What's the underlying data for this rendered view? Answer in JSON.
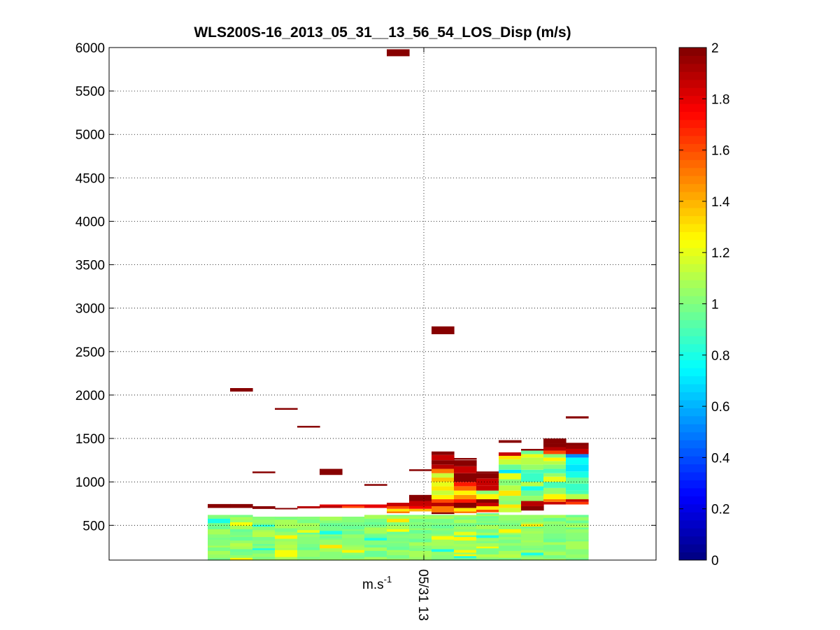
{
  "chart_data": [
    {
      "type": "heatmap",
      "title": "WLS200S-16_2013_05_31__13_56_54_LOS_Disp (m/s)",
      "xlabel": "m.s",
      "xlabel_superscript": "-1",
      "x_ticks": [
        "05/31 13"
      ],
      "y_ticks": [
        500,
        1000,
        1500,
        2000,
        2500,
        3000,
        3500,
        4000,
        4500,
        5000,
        5500,
        6000
      ],
      "ylim": [
        100,
        6000
      ],
      "grid": true,
      "colormap": "jet",
      "colorbar": {
        "ticks": [
          0,
          0.2,
          0.4,
          0.6,
          0.8,
          1,
          1.2,
          1.4,
          1.6,
          1.8,
          2
        ],
        "range": [
          0,
          2
        ],
        "levels": 64
      },
      "colors": {
        "background": "#ffffff",
        "grid": "#000000",
        "saturated_high": "#800000",
        "saturated_low": "#00008f"
      },
      "columns": [
        {
          "low_band_top": 620,
          "cells": [
            [
              700,
              720,
              2
            ],
            [
              720,
              745,
              2
            ]
          ]
        },
        {
          "low_band_top": 620,
          "cells": [
            [
              700,
              720,
              2
            ],
            [
              720,
              745,
              2
            ],
            [
              2040,
              2080,
              2
            ]
          ]
        },
        {
          "low_band_top": 600,
          "cells": [
            [
              690,
              705,
              2
            ],
            [
              705,
              720,
              2
            ],
            [
              1100,
              1120,
              2
            ]
          ]
        },
        {
          "low_band_top": 600,
          "cells": [
            [
              690,
              700,
              2
            ],
            [
              1830,
              1850,
              2
            ]
          ]
        },
        {
          "low_band_top": 600,
          "cells": [
            [
              695,
              720,
              1.9
            ],
            [
              1625,
              1645,
              2
            ]
          ]
        },
        {
          "low_band_top": 600,
          "cells": [
            [
              700,
              725,
              1.9
            ],
            [
              725,
              740,
              1.8
            ],
            [
              1080,
              1150,
              2
            ]
          ]
        },
        {
          "low_band_top": 600,
          "cells": [
            [
              700,
              725,
              1.6
            ],
            [
              725,
              740,
              1.8
            ]
          ]
        },
        {
          "low_band_top": 620,
          "cells": [
            [
              700,
              740,
              1.8
            ],
            [
              955,
              975,
              2
            ]
          ]
        },
        {
          "low_band_top": 620,
          "cells": [
            [
              640,
              660,
              1.5
            ],
            [
              660,
              690,
              1.3
            ],
            [
              690,
              720,
              1.6
            ],
            [
              720,
              760,
              1.85
            ],
            [
              5900,
              5980,
              2
            ]
          ]
        },
        {
          "low_band_top": 620,
          "cells": [
            [
              660,
              690,
              1.4
            ],
            [
              690,
              720,
              1.75
            ],
            [
              720,
              780,
              1.85
            ],
            [
              780,
              850,
              2
            ],
            [
              1125,
              1145,
              2
            ]
          ]
        },
        {
          "low_band_top": 620,
          "cells": [
            [
              630,
              650,
              2
            ],
            [
              650,
              720,
              1.5
            ],
            [
              720,
              760,
              1.9
            ],
            [
              760,
              800,
              1.6
            ],
            [
              800,
              850,
              1.25
            ],
            [
              850,
              900,
              1.15
            ],
            [
              900,
              950,
              1.3
            ],
            [
              950,
              1000,
              1.2
            ],
            [
              1000,
              1050,
              1.35
            ],
            [
              1050,
              1100,
              1.15
            ],
            [
              1100,
              1150,
              1.5
            ],
            [
              1150,
              1200,
              1.9
            ],
            [
              1200,
              1250,
              2
            ],
            [
              1250,
              1310,
              1.85
            ],
            [
              1310,
              1350,
              2
            ],
            [
              2700,
              2790,
              2
            ]
          ]
        },
        {
          "low_band_top": 620,
          "cells": [
            [
              640,
              660,
              1.5
            ],
            [
              660,
              700,
              1.3
            ],
            [
              700,
              760,
              2
            ],
            [
              760,
              800,
              1.7
            ],
            [
              800,
              850,
              1.45
            ],
            [
              850,
              900,
              1.25
            ],
            [
              900,
              950,
              1.55
            ],
            [
              950,
              1000,
              1.7
            ],
            [
              1000,
              1100,
              2
            ],
            [
              1100,
              1180,
              1.85
            ],
            [
              1180,
              1250,
              2
            ],
            [
              1255,
              1275,
              2
            ]
          ]
        },
        {
          "low_band_top": 640,
          "cells": [
            [
              650,
              680,
              1.6
            ],
            [
              680,
              720,
              1.3
            ],
            [
              720,
              760,
              1.85
            ],
            [
              760,
              800,
              2
            ],
            [
              800,
              860,
              1.25
            ],
            [
              860,
              900,
              1.0
            ],
            [
              900,
              960,
              1.85
            ],
            [
              960,
              1040,
              1.85
            ],
            [
              1040,
              1100,
              2
            ],
            [
              1100,
              1120,
              2
            ]
          ]
        },
        {
          "low_band_top": 620,
          "cells": [
            [
              650,
              700,
              1.15
            ],
            [
              700,
              740,
              1.3
            ],
            [
              740,
              780,
              1.0
            ],
            [
              780,
              840,
              1.05
            ],
            [
              840,
              900,
              1.3
            ],
            [
              900,
              960,
              1.1
            ],
            [
              960,
              1030,
              1.0
            ],
            [
              1030,
              1100,
              1.2
            ],
            [
              1100,
              1140,
              0.7
            ],
            [
              1140,
              1200,
              0.95
            ],
            [
              1200,
              1260,
              1.15
            ],
            [
              1260,
              1300,
              1.3
            ],
            [
              1300,
              1340,
              1.85
            ],
            [
              1450,
              1480,
              2
            ]
          ]
        },
        {
          "low_band_top": 620,
          "cells": [
            [
              670,
              720,
              2
            ],
            [
              720,
              780,
              1.9
            ],
            [
              780,
              840,
              1.05
            ],
            [
              840,
              900,
              0.95
            ],
            [
              900,
              950,
              0.8
            ],
            [
              950,
              1000,
              1.1
            ],
            [
              1000,
              1100,
              0.85
            ],
            [
              1100,
              1140,
              0.9
            ],
            [
              1140,
              1200,
              1.05
            ],
            [
              1200,
              1280,
              1.1
            ],
            [
              1280,
              1320,
              1.2
            ],
            [
              1320,
              1360,
              0.95
            ],
            [
              1360,
              1380,
              2
            ]
          ]
        },
        {
          "low_band_top": 620,
          "cells": [
            [
              740,
              770,
              1.85
            ],
            [
              770,
              800,
              1.5
            ],
            [
              800,
              860,
              1.25
            ],
            [
              860,
              930,
              1.05
            ],
            [
              930,
              1000,
              0.9
            ],
            [
              1000,
              1060,
              1.2
            ],
            [
              1060,
              1100,
              1.05
            ],
            [
              1100,
              1150,
              0.9
            ],
            [
              1150,
              1200,
              1.0
            ],
            [
              1200,
              1240,
              1.1
            ],
            [
              1240,
              1280,
              1.25
            ],
            [
              1280,
              1320,
              1.0
            ],
            [
              1320,
              1360,
              1.6
            ],
            [
              1360,
              1400,
              1.9
            ],
            [
              1400,
              1440,
              2
            ],
            [
              1440,
              1500,
              2
            ]
          ]
        },
        {
          "low_band_top": 620,
          "cells": [
            [
              740,
              770,
              1.65
            ],
            [
              770,
              800,
              1.85
            ],
            [
              800,
              860,
              1.1
            ],
            [
              860,
              900,
              0.9
            ],
            [
              900,
              980,
              0.85
            ],
            [
              980,
              1050,
              0.95
            ],
            [
              1050,
              1120,
              0.8
            ],
            [
              1120,
              1200,
              0.7
            ],
            [
              1200,
              1280,
              0.75
            ],
            [
              1280,
              1320,
              0.5
            ],
            [
              1320,
              1380,
              1.85
            ],
            [
              1380,
              1420,
              1.95
            ],
            [
              1420,
              1450,
              2
            ],
            [
              1730,
              1755,
              2
            ]
          ]
        }
      ]
    }
  ]
}
